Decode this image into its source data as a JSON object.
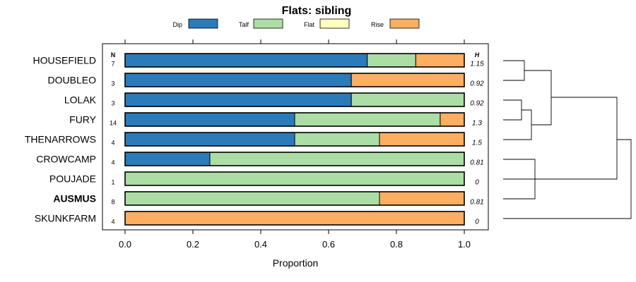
{
  "chart_data": {
    "type": "bar",
    "stacked": true,
    "orientation": "horizontal",
    "title": "Flats: sibling",
    "xlabel": "Proportion",
    "ylabel": "",
    "xlim": [
      -0.06,
      1.07
    ],
    "xticks": [
      "0.0",
      "0.2",
      "0.4",
      "0.6",
      "0.8",
      "1.0"
    ],
    "xtick_values": [
      0,
      0.2,
      0.4,
      0.6,
      0.8,
      1.0
    ],
    "legend": [
      {
        "name": "Dip",
        "color": "#2b7bba"
      },
      {
        "name": "Talf",
        "color": "#abdda4"
      },
      {
        "name": "Flat",
        "color": "#ffffbf"
      },
      {
        "name": "Rise",
        "color": "#fdae61"
      }
    ],
    "n_header": "N",
    "h_header": "H",
    "categories": [
      "HOUSEFIELD",
      "DOUBLEO",
      "LOLAK",
      "FURY",
      "THENARROWS",
      "CROWCAMP",
      "POUJADE",
      "AUSMUS",
      "SKUNKFARM"
    ],
    "highlighted": [
      "AUSMUS"
    ],
    "n": [
      "7",
      "3",
      "3",
      "14",
      "4",
      "4",
      "1",
      "8",
      "4"
    ],
    "h": [
      "1.15",
      "0.92",
      "0.92",
      "1.3",
      "1.5",
      "0.81",
      "0",
      "0.81",
      "0"
    ],
    "series": [
      {
        "name": "Dip",
        "values": [
          0.714,
          0.667,
          0.667,
          0.5,
          0.5,
          0.25,
          0,
          0,
          0
        ]
      },
      {
        "name": "Talf",
        "values": [
          0.143,
          0,
          0.333,
          0.429,
          0.25,
          0.75,
          1.0,
          0.75,
          0
        ]
      },
      {
        "name": "Flat",
        "values": [
          0,
          0,
          0,
          0,
          0,
          0,
          0,
          0,
          0
        ]
      },
      {
        "name": "Rise",
        "values": [
          0.143,
          0.333,
          0,
          0.071,
          0.25,
          0,
          0,
          0.25,
          1.0
        ]
      }
    ]
  }
}
